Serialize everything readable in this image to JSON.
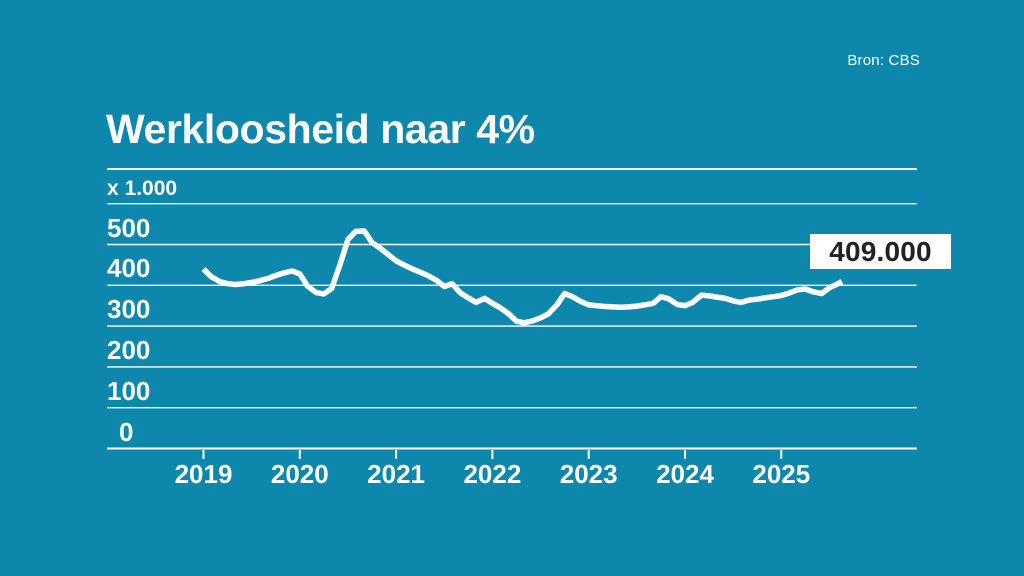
{
  "source": "Bron: CBS",
  "title": "Werkloosheid naar 4%",
  "callout": {
    "label": "409.000"
  },
  "colors": {
    "background": "#0D87AB",
    "grid": "#FFFFFF",
    "line": "#FFFFFF",
    "text": "#FFFFFF",
    "callout_bg": "#FFFFFF",
    "callout_text": "#222222"
  },
  "chart_data": {
    "type": "line",
    "title": "Werkloosheid naar 4%",
    "source": "Bron: CBS",
    "unit": "x 1.000",
    "xlabel": "",
    "ylabel": "x 1.000",
    "grid": true,
    "legend": "none",
    "ylim": [
      0,
      600
    ],
    "xlim": [
      2018,
      2026.4
    ],
    "x_ticks": [
      2019,
      2020,
      2021,
      2022,
      2023,
      2024,
      2025
    ],
    "x_tick_labels": [
      "2019",
      "2020",
      "2021",
      "2022",
      "2023",
      "2024",
      "2025"
    ],
    "y_ticks": [
      0,
      100,
      200,
      300,
      400,
      500
    ],
    "y_tick_labels": [
      "0",
      "100",
      "200",
      "300",
      "400",
      "500"
    ],
    "y_gridlines": [
      0,
      100,
      200,
      300,
      400,
      500,
      600
    ],
    "annotation": {
      "text": "409.000",
      "x": 2025.63,
      "value": 409
    },
    "series": [
      {
        "name": "Werkloosheid (x 1.000)",
        "points": [
          [
            2019.0,
            440
          ],
          [
            2019.08,
            421
          ],
          [
            2019.17,
            409
          ],
          [
            2019.25,
            404
          ],
          [
            2019.33,
            402
          ],
          [
            2019.42,
            404
          ],
          [
            2019.5,
            407
          ],
          [
            2019.58,
            411
          ],
          [
            2019.67,
            417
          ],
          [
            2019.75,
            424
          ],
          [
            2019.83,
            430
          ],
          [
            2019.92,
            435
          ],
          [
            2020.0,
            428
          ],
          [
            2020.08,
            398
          ],
          [
            2020.17,
            382
          ],
          [
            2020.25,
            379
          ],
          [
            2020.33,
            392
          ],
          [
            2020.42,
            452
          ],
          [
            2020.5,
            512
          ],
          [
            2020.58,
            532
          ],
          [
            2020.67,
            533
          ],
          [
            2020.75,
            505
          ],
          [
            2020.83,
            492
          ],
          [
            2020.92,
            475
          ],
          [
            2021.0,
            460
          ],
          [
            2021.08,
            450
          ],
          [
            2021.17,
            440
          ],
          [
            2021.25,
            432
          ],
          [
            2021.33,
            424
          ],
          [
            2021.42,
            412
          ],
          [
            2021.5,
            397
          ],
          [
            2021.58,
            404
          ],
          [
            2021.67,
            381
          ],
          [
            2021.75,
            369
          ],
          [
            2021.83,
            358
          ],
          [
            2021.92,
            368
          ],
          [
            2022.0,
            356
          ],
          [
            2022.08,
            345
          ],
          [
            2022.17,
            330
          ],
          [
            2022.25,
            312
          ],
          [
            2022.33,
            308
          ],
          [
            2022.42,
            313
          ],
          [
            2022.5,
            320
          ],
          [
            2022.58,
            330
          ],
          [
            2022.67,
            352
          ],
          [
            2022.75,
            380
          ],
          [
            2022.83,
            372
          ],
          [
            2022.92,
            360
          ],
          [
            2023.0,
            352
          ],
          [
            2023.08,
            350
          ],
          [
            2023.17,
            348
          ],
          [
            2023.25,
            347
          ],
          [
            2023.33,
            346
          ],
          [
            2023.42,
            347
          ],
          [
            2023.5,
            349
          ],
          [
            2023.58,
            352
          ],
          [
            2023.67,
            356
          ],
          [
            2023.75,
            372
          ],
          [
            2023.83,
            367
          ],
          [
            2023.92,
            353
          ],
          [
            2024.0,
            350
          ],
          [
            2024.08,
            358
          ],
          [
            2024.17,
            376
          ],
          [
            2024.25,
            374
          ],
          [
            2024.33,
            371
          ],
          [
            2024.42,
            368
          ],
          [
            2024.5,
            362
          ],
          [
            2024.58,
            358
          ],
          [
            2024.67,
            364
          ],
          [
            2024.75,
            366
          ],
          [
            2024.83,
            369
          ],
          [
            2024.92,
            372
          ],
          [
            2025.0,
            375
          ],
          [
            2025.08,
            381
          ],
          [
            2025.17,
            389
          ],
          [
            2025.25,
            391
          ],
          [
            2025.33,
            384
          ],
          [
            2025.42,
            380
          ],
          [
            2025.5,
            394
          ],
          [
            2025.58,
            403
          ],
          [
            2025.63,
            409
          ]
        ]
      }
    ]
  }
}
